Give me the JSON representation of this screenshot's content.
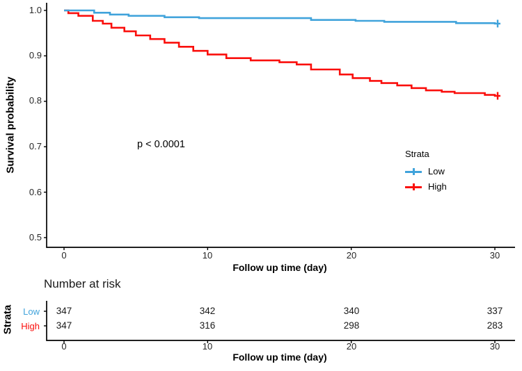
{
  "chart_data": {
    "type": "line",
    "subtype": "kaplan-meier-survival",
    "title": "",
    "xlabel": "Follow up time (day)",
    "ylabel": "Survival probability",
    "xlim": [
      0,
      31
    ],
    "ylim": [
      0.478,
      1.0
    ],
    "grid": false,
    "x_ticks": [
      0,
      10,
      20,
      30
    ],
    "y_ticks": [
      1.0,
      0.9,
      0.8,
      0.7,
      0.6,
      0.5
    ],
    "x_tick_labels": [
      "0",
      "10",
      "20",
      "30"
    ],
    "y_tick_labels": [
      "1.0",
      "0.9",
      "0.8",
      "0.7",
      "0.6",
      "0.5"
    ],
    "annotation": "p < 0.0001",
    "legend_position": "right-middle",
    "legend_title": "Strata",
    "series": [
      {
        "name": "Low",
        "color": "#40A3DB",
        "steps": [
          [
            0,
            1.0
          ],
          [
            2.1,
            0.995
          ],
          [
            3.2,
            0.991
          ],
          [
            4.5,
            0.988
          ],
          [
            7,
            0.985
          ],
          [
            9.4,
            0.983
          ],
          [
            17.2,
            0.979
          ],
          [
            20.3,
            0.977
          ],
          [
            22.3,
            0.975
          ],
          [
            27.3,
            0.972
          ],
          [
            30,
            0.971
          ]
        ],
        "censor_times": [
          30
        ]
      },
      {
        "name": "High",
        "color": "#FA0F0C",
        "steps": [
          [
            0,
            1.0
          ],
          [
            0.3,
            0.994
          ],
          [
            1,
            0.988
          ],
          [
            2,
            0.977
          ],
          [
            2.7,
            0.971
          ],
          [
            3.3,
            0.962
          ],
          [
            4.2,
            0.954
          ],
          [
            5,
            0.945
          ],
          [
            6,
            0.937
          ],
          [
            7,
            0.929
          ],
          [
            8,
            0.92
          ],
          [
            9,
            0.911
          ],
          [
            10,
            0.903
          ],
          [
            11.3,
            0.895
          ],
          [
            13,
            0.89
          ],
          [
            15,
            0.886
          ],
          [
            16.2,
            0.881
          ],
          [
            17.2,
            0.87
          ],
          [
            19.2,
            0.859
          ],
          [
            20.1,
            0.851
          ],
          [
            21.3,
            0.845
          ],
          [
            22.1,
            0.84
          ],
          [
            23.2,
            0.835
          ],
          [
            24.2,
            0.829
          ],
          [
            25.2,
            0.824
          ],
          [
            26.3,
            0.821
          ],
          [
            27.2,
            0.818
          ],
          [
            29.3,
            0.814
          ],
          [
            30,
            0.812
          ]
        ],
        "censor_times": [
          30
        ]
      }
    ],
    "risk_table": {
      "title": "Number at risk",
      "ylabel": "Strata",
      "xlabel": "Follow up time (day)",
      "times": [
        0,
        10,
        20,
        30
      ],
      "x_tick_labels": [
        "0",
        "10",
        "20",
        "30"
      ],
      "rows": [
        {
          "name": "Low",
          "color": "#40A3DB",
          "counts": [
            "347",
            "342",
            "340",
            "337"
          ]
        },
        {
          "name": "High",
          "color": "#FA0F0C",
          "counts": [
            "347",
            "316",
            "298",
            "283"
          ]
        }
      ]
    }
  }
}
